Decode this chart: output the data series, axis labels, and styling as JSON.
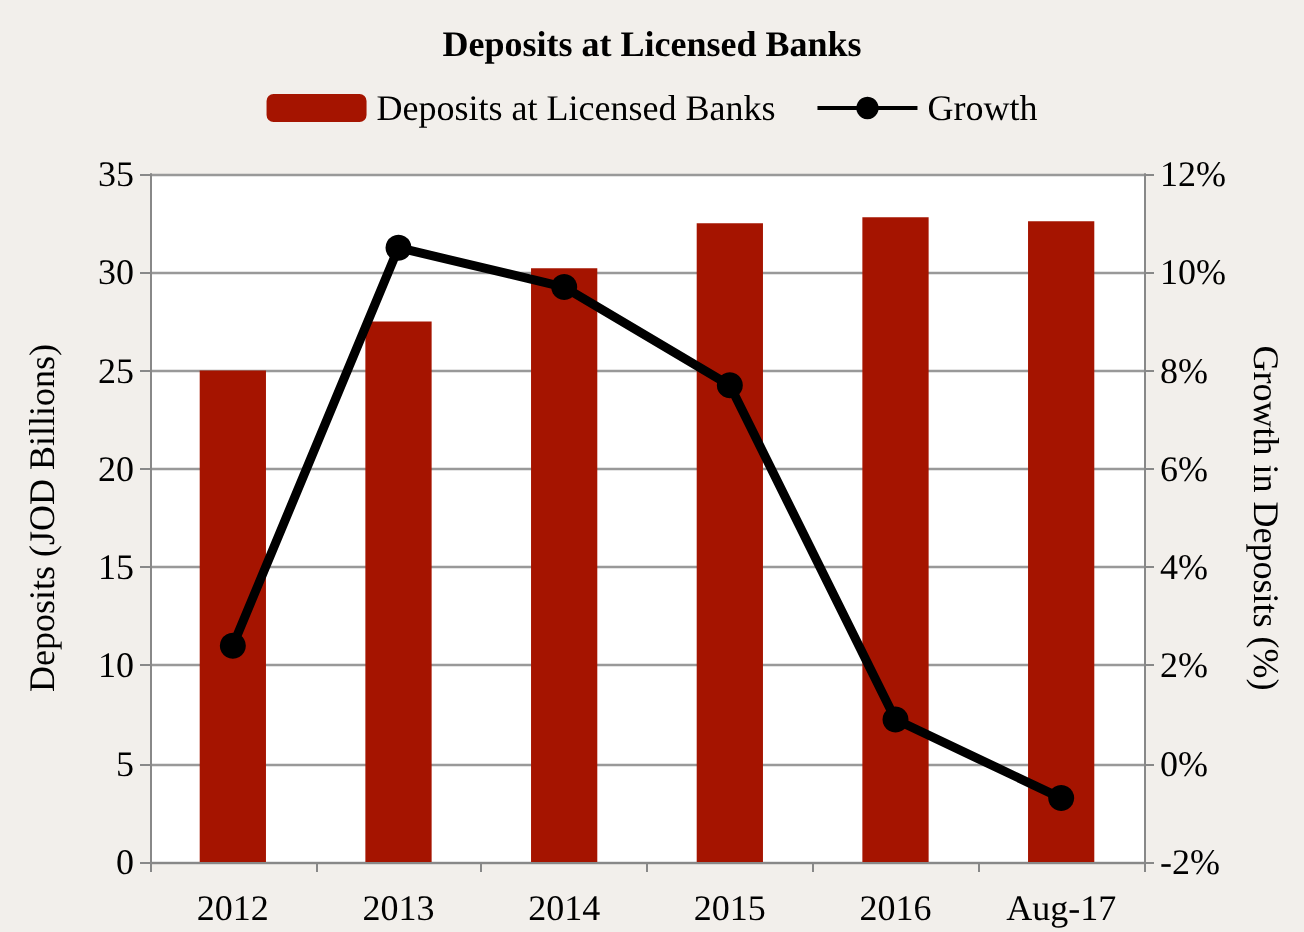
{
  "chart_data": {
    "type": "bar",
    "title": "Deposits at Licensed Banks",
    "ylabel": "Deposits (JOD Billions)",
    "y2label": "Growth in Deposits (%)",
    "categories": [
      "2012",
      "2013",
      "2014",
      "2015",
      "2016",
      "Aug-17"
    ],
    "series": [
      {
        "name": "Deposits at Licensed Banks",
        "color": "#a51400",
        "values": [
          25.0,
          27.5,
          30.2,
          32.5,
          32.8,
          32.6
        ]
      },
      {
        "name": "Growth",
        "type": "line",
        "axis": "y2",
        "color": "#000000",
        "values": [
          2.4,
          10.5,
          9.7,
          7.7,
          0.9,
          -0.7
        ]
      }
    ],
    "ylim": [
      0,
      35
    ],
    "yticks": [
      0,
      5,
      10,
      15,
      20,
      25,
      30,
      35
    ],
    "y2lim": [
      -2,
      12
    ],
    "y2ticks": [
      {
        "value": -2,
        "label": "-2%"
      },
      {
        "value": 0,
        "label": "0%"
      },
      {
        "value": 2,
        "label": "2%"
      },
      {
        "value": 4,
        "label": "4%"
      },
      {
        "value": 6,
        "label": "6%"
      },
      {
        "value": 8,
        "label": "8%"
      },
      {
        "value": 10,
        "label": "10%"
      },
      {
        "value": 12,
        "label": "12%"
      }
    ],
    "grid": "y",
    "legend": "top",
    "marker": "circle",
    "line_style": "solid"
  }
}
